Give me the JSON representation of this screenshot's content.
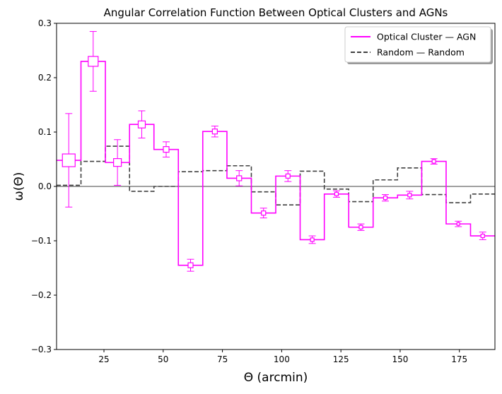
{
  "chart_data": {
    "type": "step",
    "title": "Angular Correlation Function Between Optical Clusters and AGNs",
    "xlabel": "Θ (arcmin)",
    "ylabel": "ω(Θ)",
    "xlim": [
      5,
      190
    ],
    "ylim": [
      -0.3,
      0.3
    ],
    "xticks": [
      25,
      50,
      75,
      100,
      125,
      150,
      175
    ],
    "yticks": [
      -0.3,
      -0.2,
      -0.1,
      0.0,
      0.1,
      0.2,
      0.3
    ],
    "xtick_labels": [
      "25",
      "50",
      "75",
      "100",
      "125",
      "150",
      "175"
    ],
    "ytick_labels": [
      "−0.3",
      "−0.2",
      "−0.1",
      "0.0",
      "0.1",
      "0.2",
      "0.3"
    ],
    "bin_edges": [
      5,
      15.3,
      25.6,
      35.8,
      46.1,
      56.4,
      66.7,
      76.9,
      87.2,
      97.5,
      107.8,
      118,
      128.3,
      138.6,
      148.9,
      159.1,
      169.4,
      179.7,
      190
    ],
    "legend_position": "top-right",
    "series": [
      {
        "name": "Optical Cluster — AGN",
        "color": "#ff00ff",
        "style": "solid",
        "values": [
          0.048,
          0.23,
          0.044,
          0.114,
          0.068,
          -0.145,
          0.101,
          0.015,
          -0.049,
          0.019,
          -0.098,
          -0.014,
          -0.075,
          -0.021,
          -0.016,
          0.046,
          -0.069,
          -0.091
        ],
        "errors": [
          0.086,
          0.055,
          0.042,
          0.025,
          0.014,
          0.011,
          0.01,
          0.014,
          0.009,
          0.01,
          0.007,
          0.006,
          0.006,
          0.006,
          0.007,
          0.005,
          0.005,
          0.007
        ],
        "marker_sizes": [
          18,
          14,
          11,
          10,
          8,
          7,
          7,
          7,
          6,
          6,
          5,
          5,
          5,
          5,
          5,
          5,
          4,
          5
        ]
      },
      {
        "name": "Random — Random",
        "color": "#404040",
        "style": "dashed",
        "values": [
          0.002,
          0.046,
          0.074,
          -0.009,
          0.0,
          0.027,
          0.029,
          0.038,
          -0.01,
          -0.034,
          0.028,
          -0.005,
          -0.028,
          0.012,
          0.034,
          -0.015,
          -0.03,
          -0.014
        ]
      }
    ]
  }
}
